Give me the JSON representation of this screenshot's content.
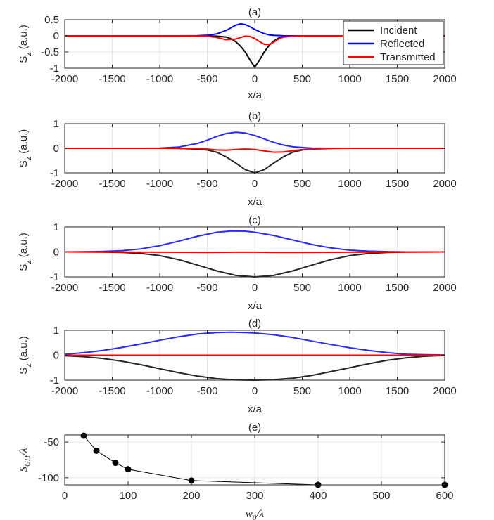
{
  "chart_data": [
    {
      "id": "a",
      "type": "line",
      "title": "(a)",
      "xlabel": "x/a",
      "ylabel": "S",
      "ylabel_sub": "z",
      "ylabel_unit": "(a.u.)",
      "xlim": [
        -2000,
        2000
      ],
      "ylim": [
        -1,
        0.5
      ],
      "xticks": [
        "-2000",
        "-1500",
        "-1000",
        "-500",
        "0",
        "500",
        "1000",
        "1500",
        "2000"
      ],
      "xtick_values": [
        -2000,
        -1500,
        -1000,
        -500,
        0,
        500,
        1000,
        1500,
        2000
      ],
      "yticks": [
        "0.5",
        "0",
        "-0.5",
        "-1"
      ],
      "ytick_values": [
        0.5,
        0,
        -0.5,
        -1
      ],
      "legend": [
        "Incident",
        "Reflected",
        "Transmitted"
      ],
      "legend_position": "top-right",
      "series": [
        {
          "name": "Incident",
          "color": "#000000",
          "x": [
            -2000,
            -500,
            -400,
            -300,
            -250,
            -200,
            -150,
            -100,
            -50,
            0,
            50,
            100,
            150,
            200,
            250,
            300,
            400,
            500,
            2000
          ],
          "y": [
            0,
            0,
            -0.01,
            -0.04,
            -0.09,
            -0.18,
            -0.32,
            -0.5,
            -0.75,
            -0.97,
            -0.75,
            -0.5,
            -0.3,
            -0.16,
            -0.07,
            -0.03,
            -0.005,
            0,
            0
          ]
        },
        {
          "name": "Reflected",
          "color": "#0000ff",
          "x": [
            -2000,
            -800,
            -600,
            -500,
            -400,
            -300,
            -250,
            -200,
            -150,
            -100,
            -50,
            0,
            50,
            100,
            150,
            200,
            300,
            400,
            500,
            2000
          ],
          "y": [
            0,
            0,
            0.005,
            0.02,
            0.06,
            0.17,
            0.25,
            0.33,
            0.37,
            0.35,
            0.28,
            0.2,
            0.13,
            0.07,
            0.03,
            0.015,
            0.003,
            0,
            0,
            0
          ]
        },
        {
          "name": "Transmitted",
          "color": "#ff0000",
          "x": [
            -2000,
            -700,
            -500,
            -400,
            -300,
            -200,
            -150,
            -100,
            -50,
            0,
            50,
            100,
            150,
            200,
            250,
            300,
            400,
            500,
            2000
          ],
          "y": [
            0,
            0,
            -0.01,
            -0.05,
            -0.12,
            -0.1,
            -0.05,
            -0.01,
            -0.02,
            -0.08,
            -0.18,
            -0.26,
            -0.27,
            -0.2,
            -0.1,
            -0.04,
            -0.01,
            0,
            0
          ]
        }
      ]
    },
    {
      "id": "b",
      "type": "line",
      "title": "(b)",
      "xlabel": "x/a",
      "ylabel": "S",
      "ylabel_sub": "z",
      "ylabel_unit": "(a.u.)",
      "xlim": [
        -2000,
        2000
      ],
      "ylim": [
        -1,
        1
      ],
      "xticks": [
        "-2000",
        "-1500",
        "-1000",
        "-500",
        "0",
        "500",
        "1000",
        "1500",
        "2000"
      ],
      "xtick_values": [
        -2000,
        -1500,
        -1000,
        -500,
        0,
        500,
        1000,
        1500,
        2000
      ],
      "yticks": [
        "1",
        "0",
        "-1"
      ],
      "ytick_values": [
        1,
        0,
        -1
      ],
      "series": [
        {
          "name": "Incident",
          "color": "#262626",
          "x": [
            -2000,
            -1000,
            -800,
            -600,
            -500,
            -400,
            -300,
            -200,
            -100,
            0,
            100,
            200,
            300,
            400,
            500,
            600,
            800,
            1000,
            2000
          ],
          "y": [
            0,
            0,
            -0.01,
            -0.03,
            -0.07,
            -0.16,
            -0.35,
            -0.6,
            -0.87,
            -1.0,
            -0.87,
            -0.6,
            -0.35,
            -0.16,
            -0.07,
            -0.03,
            -0.01,
            0,
            0
          ]
        },
        {
          "name": "Reflected",
          "color": "#2a2aff",
          "x": [
            -2000,
            -1200,
            -1000,
            -800,
            -600,
            -500,
            -400,
            -300,
            -200,
            -100,
            0,
            100,
            200,
            300,
            400,
            500,
            600,
            800,
            2000
          ],
          "y": [
            0,
            0,
            0.01,
            0.05,
            0.2,
            0.33,
            0.48,
            0.6,
            0.65,
            0.62,
            0.52,
            0.38,
            0.24,
            0.13,
            0.06,
            0.03,
            0.01,
            0,
            0
          ]
        },
        {
          "name": "Transmitted",
          "color": "#ff0000",
          "x": [
            -2000,
            -800,
            -600,
            -500,
            -400,
            -300,
            -200,
            -100,
            0,
            100,
            200,
            300,
            400,
            500,
            600,
            700,
            900,
            2000
          ],
          "y": [
            0,
            0,
            -0.01,
            -0.03,
            -0.07,
            -0.08,
            -0.05,
            -0.03,
            -0.05,
            -0.11,
            -0.16,
            -0.15,
            -0.1,
            -0.05,
            -0.02,
            -0.01,
            0,
            0
          ]
        }
      ]
    },
    {
      "id": "c",
      "type": "line",
      "title": "(c)",
      "xlabel": "x/a",
      "ylabel": "S",
      "ylabel_sub": "z",
      "ylabel_unit": "(a.u.)",
      "xlim": [
        -2000,
        2000
      ],
      "ylim": [
        -1,
        1
      ],
      "xticks": [
        "-2000",
        "-1500",
        "-1000",
        "-500",
        "0",
        "500",
        "1000",
        "1500",
        "2000"
      ],
      "xtick_values": [
        -2000,
        -1500,
        -1000,
        -500,
        0,
        500,
        1000,
        1500,
        2000
      ],
      "yticks": [
        "1",
        "0",
        "-1"
      ],
      "ytick_values": [
        1,
        0,
        -1
      ],
      "series": [
        {
          "name": "Incident",
          "color": "#262626",
          "x": [
            -2000,
            -1600,
            -1400,
            -1200,
            -1000,
            -800,
            -600,
            -400,
            -200,
            0,
            200,
            400,
            600,
            800,
            1000,
            1200,
            1400,
            1600,
            2000
          ],
          "y": [
            0,
            -0.005,
            -0.02,
            -0.06,
            -0.15,
            -0.31,
            -0.53,
            -0.76,
            -0.94,
            -1.0,
            -0.94,
            -0.76,
            -0.53,
            -0.31,
            -0.15,
            -0.06,
            -0.02,
            -0.005,
            0
          ]
        },
        {
          "name": "Reflected",
          "color": "#2a2aff",
          "x": [
            -2000,
            -1800,
            -1600,
            -1400,
            -1200,
            -1000,
            -800,
            -600,
            -400,
            -250,
            -100,
            0,
            200,
            400,
            600,
            800,
            1000,
            1200,
            1400,
            1600,
            2000
          ],
          "y": [
            0,
            0.005,
            0.02,
            0.05,
            0.12,
            0.25,
            0.43,
            0.63,
            0.79,
            0.84,
            0.83,
            0.79,
            0.66,
            0.48,
            0.3,
            0.16,
            0.07,
            0.03,
            0.01,
            0,
            0
          ]
        },
        {
          "name": "Transmitted",
          "color": "#ff0000",
          "x": [
            -2000,
            -1000,
            -500,
            -200,
            0,
            200,
            500,
            1000,
            2000
          ],
          "y": [
            0,
            -0.01,
            -0.02,
            -0.01,
            -0.01,
            -0.02,
            -0.02,
            -0.01,
            0
          ]
        }
      ]
    },
    {
      "id": "d",
      "type": "line",
      "title": "(d)",
      "xlabel": "x/a",
      "ylabel": "S",
      "ylabel_sub": "z",
      "ylabel_unit": "(a.u.)",
      "xlim": [
        -2000,
        2000
      ],
      "ylim": [
        -1,
        1
      ],
      "xticks": [
        "-2000",
        "-1500",
        "-1000",
        "-500",
        "0",
        "500",
        "1000",
        "1500",
        "2000"
      ],
      "xtick_values": [
        -2000,
        -1500,
        -1000,
        -500,
        0,
        500,
        1000,
        1500,
        2000
      ],
      "yticks": [
        "1",
        "0",
        "-1"
      ],
      "ytick_values": [
        1,
        0,
        -1
      ],
      "series": [
        {
          "name": "Incident",
          "color": "#262626",
          "x": [
            -2000,
            -1800,
            -1600,
            -1400,
            -1200,
            -1000,
            -800,
            -600,
            -400,
            -200,
            0,
            200,
            400,
            600,
            800,
            1000,
            1200,
            1400,
            1600,
            1800,
            2000
          ],
          "y": [
            -0.02,
            -0.06,
            -0.13,
            -0.24,
            -0.38,
            -0.54,
            -0.7,
            -0.84,
            -0.94,
            -0.99,
            -1.0,
            -0.98,
            -0.92,
            -0.81,
            -0.66,
            -0.5,
            -0.34,
            -0.2,
            -0.1,
            -0.04,
            -0.01
          ]
        },
        {
          "name": "Reflected",
          "color": "#2a2aff",
          "x": [
            -2000,
            -1800,
            -1600,
            -1400,
            -1200,
            -1000,
            -800,
            -600,
            -400,
            -250,
            -100,
            0,
            200,
            400,
            600,
            800,
            1000,
            1200,
            1400,
            1600,
            1800,
            2000
          ],
          "y": [
            0.04,
            0.1,
            0.19,
            0.31,
            0.45,
            0.6,
            0.74,
            0.85,
            0.91,
            0.92,
            0.91,
            0.89,
            0.82,
            0.71,
            0.57,
            0.43,
            0.3,
            0.19,
            0.1,
            0.04,
            0.02,
            0.01
          ]
        },
        {
          "name": "Transmitted",
          "color": "#ff0000",
          "x": [
            -2000,
            2000
          ],
          "y": [
            0,
            0
          ]
        }
      ]
    },
    {
      "id": "e",
      "type": "line",
      "title": "(e)",
      "xlabel": "w",
      "xlabel_sub": "0",
      "xlabel_tail": "/λ",
      "ylabel": "S",
      "ylabel_sub": "GH",
      "ylabel_tail": "/λ",
      "xlim": [
        0,
        600
      ],
      "ylim": [
        -110,
        -40
      ],
      "xticks": [
        "0",
        "100",
        "200",
        "300",
        "400",
        "500",
        "600"
      ],
      "xtick_values": [
        0,
        100,
        200,
        300,
        400,
        500,
        600
      ],
      "yticks": [
        "-50",
        "-100"
      ],
      "ytick_values": [
        -50,
        -100
      ],
      "series": [
        {
          "name": "S_GH",
          "color": "#000000",
          "marker": "circle",
          "x": [
            30,
            50,
            80,
            100,
            200,
            400,
            600
          ],
          "y": [
            -41,
            -62,
            -79,
            -88,
            -104,
            -110,
            -110
          ]
        }
      ]
    }
  ]
}
